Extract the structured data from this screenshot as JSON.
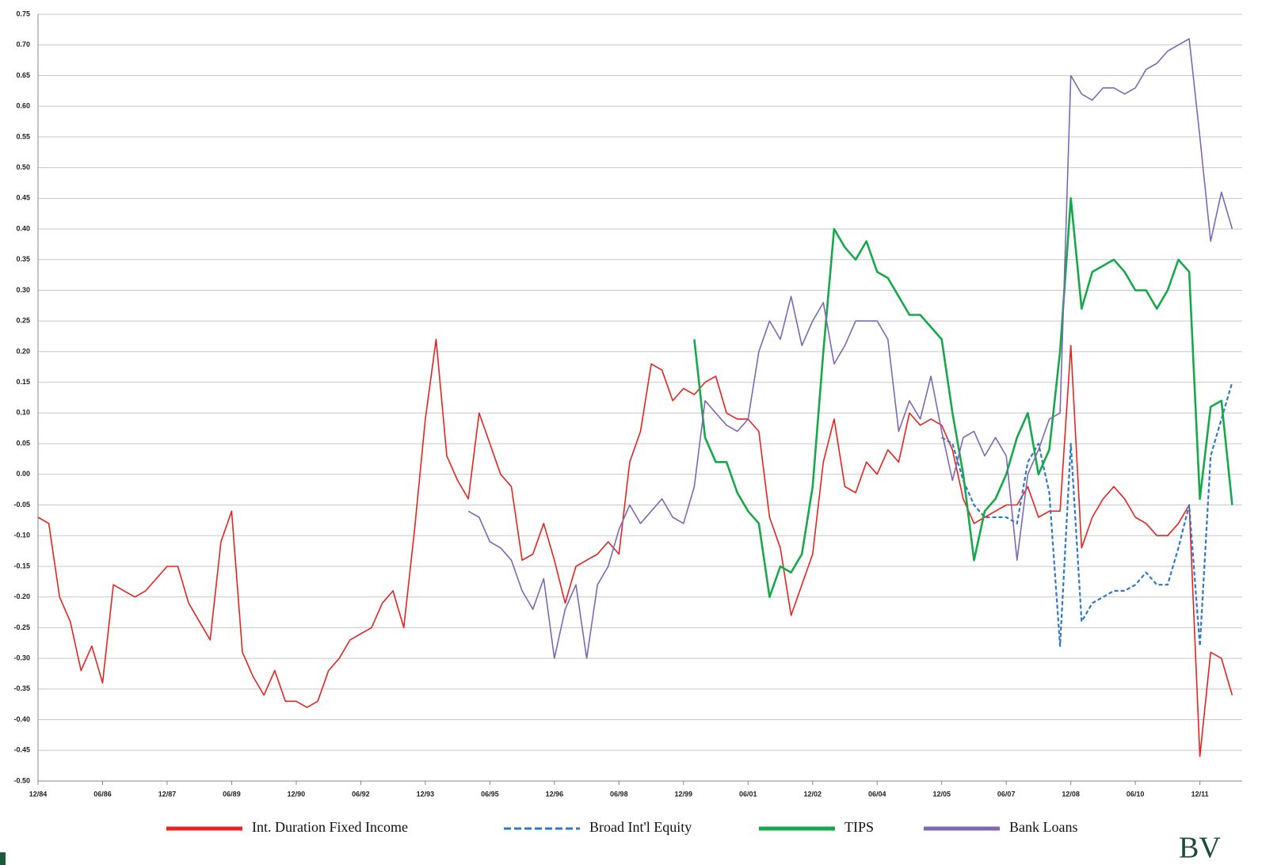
{
  "chart_data": {
    "type": "line",
    "categories": [
      "12/84",
      null,
      null,
      null,
      null,
      null,
      "06/86",
      null,
      null,
      null,
      null,
      null,
      "12/87",
      null,
      null,
      null,
      null,
      null,
      "06/89",
      null,
      null,
      null,
      null,
      null,
      "12/90",
      null,
      null,
      null,
      null,
      null,
      "06/92",
      null,
      null,
      null,
      null,
      null,
      "12/93",
      null,
      null,
      null,
      null,
      null,
      "06/95",
      null,
      null,
      null,
      null,
      null,
      "12/96",
      null,
      null,
      null,
      null,
      null,
      "06/98",
      null,
      null,
      null,
      null,
      null,
      "12/99",
      null,
      null,
      null,
      null,
      null,
      "06/01",
      null,
      null,
      null,
      null,
      null,
      "12/02",
      null,
      null,
      null,
      null,
      null,
      "06/04",
      null,
      null,
      null,
      null,
      null,
      "12/05",
      null,
      null,
      null,
      null,
      null,
      "06/07",
      null,
      null,
      null,
      null,
      null,
      "12/08",
      null,
      null,
      null,
      null,
      null,
      "06/10",
      null,
      null,
      null,
      null,
      null,
      "12/11",
      null,
      null,
      null
    ],
    "series": [
      {
        "name": "Int. Duration Fixed Income",
        "color": "#e3241f",
        "line_width": 1.6,
        "values": [
          -0.07,
          -0.08,
          -0.2,
          -0.24,
          -0.32,
          -0.28,
          -0.34,
          -0.18,
          -0.19,
          -0.2,
          -0.19,
          -0.17,
          -0.15,
          -0.15,
          -0.21,
          -0.24,
          -0.27,
          -0.11,
          -0.06,
          -0.29,
          -0.33,
          -0.36,
          -0.32,
          -0.37,
          -0.37,
          -0.38,
          -0.37,
          -0.32,
          -0.3,
          -0.27,
          -0.26,
          -0.25,
          -0.21,
          -0.19,
          -0.25,
          -0.09,
          0.09,
          0.22,
          0.03,
          -0.01,
          -0.04,
          0.1,
          0.05,
          0.0,
          -0.02,
          -0.14,
          -0.13,
          -0.08,
          -0.14,
          -0.21,
          -0.15,
          -0.14,
          -0.13,
          -0.11,
          -0.13,
          0.02,
          0.07,
          0.18,
          0.17,
          0.12,
          0.14,
          0.13,
          0.15,
          0.16,
          0.1,
          0.09,
          0.09,
          0.07,
          -0.07,
          -0.12,
          -0.23,
          -0.18,
          -0.13,
          0.02,
          0.09,
          -0.02,
          -0.03,
          0.02,
          0.0,
          0.04,
          0.02,
          0.1,
          0.08,
          0.09,
          0.08,
          0.04,
          -0.04,
          -0.08,
          -0.07,
          -0.06,
          -0.05,
          -0.05,
          -0.02,
          -0.07,
          -0.06,
          -0.06,
          0.21,
          -0.12,
          -0.07,
          -0.04,
          -0.02,
          -0.04,
          -0.07,
          -0.08,
          -0.1,
          -0.1,
          -0.08,
          -0.05,
          -0.46,
          -0.29,
          -0.3,
          -0.36
        ]
      },
      {
        "name": "Broad Int'l Equity",
        "color": "#2f78c8",
        "line_width": 2.2,
        "style": "dashed",
        "values": [
          null,
          null,
          null,
          null,
          null,
          null,
          null,
          null,
          null,
          null,
          null,
          null,
          null,
          null,
          null,
          null,
          null,
          null,
          null,
          null,
          null,
          null,
          null,
          null,
          null,
          null,
          null,
          null,
          null,
          null,
          null,
          null,
          null,
          null,
          null,
          null,
          null,
          null,
          null,
          null,
          null,
          null,
          null,
          null,
          null,
          null,
          null,
          null,
          null,
          null,
          null,
          null,
          null,
          null,
          null,
          null,
          null,
          null,
          null,
          null,
          null,
          null,
          null,
          null,
          null,
          null,
          null,
          null,
          null,
          null,
          null,
          null,
          null,
          null,
          null,
          null,
          null,
          null,
          null,
          null,
          null,
          null,
          null,
          null,
          0.06,
          0.05,
          -0.01,
          -0.05,
          -0.07,
          -0.07,
          -0.07,
          -0.08,
          0.02,
          0.05,
          -0.03,
          -0.28,
          0.05,
          -0.24,
          -0.21,
          -0.2,
          -0.19,
          -0.19,
          -0.18,
          -0.16,
          -0.18,
          -0.18,
          -0.12,
          -0.05,
          -0.28,
          0.03,
          0.09,
          0.15
        ]
      },
      {
        "name": "TIPS",
        "color": "#16a84a",
        "line_width": 2.6,
        "values": [
          null,
          null,
          null,
          null,
          null,
          null,
          null,
          null,
          null,
          null,
          null,
          null,
          null,
          null,
          null,
          null,
          null,
          null,
          null,
          null,
          null,
          null,
          null,
          null,
          null,
          null,
          null,
          null,
          null,
          null,
          null,
          null,
          null,
          null,
          null,
          null,
          null,
          null,
          null,
          null,
          null,
          null,
          null,
          null,
          null,
          null,
          null,
          null,
          null,
          null,
          null,
          null,
          null,
          null,
          null,
          null,
          null,
          null,
          null,
          null,
          null,
          0.22,
          0.06,
          0.02,
          0.02,
          -0.03,
          -0.06,
          -0.08,
          -0.2,
          -0.15,
          -0.16,
          -0.13,
          -0.02,
          0.2,
          0.4,
          0.37,
          0.35,
          0.38,
          0.33,
          0.32,
          0.29,
          0.26,
          0.26,
          0.24,
          0.22,
          0.1,
          0.0,
          -0.14,
          -0.06,
          -0.04,
          0.0,
          0.06,
          0.1,
          0.0,
          0.04,
          0.2,
          0.45,
          0.27,
          0.33,
          0.34,
          0.35,
          0.33,
          0.3,
          0.3,
          0.27,
          0.3,
          0.35,
          0.33,
          -0.04,
          0.11,
          0.12,
          -0.05
        ]
      },
      {
        "name": "Bank Loans",
        "color": "#7e68b4",
        "line_width": 1.6,
        "values": [
          null,
          null,
          null,
          null,
          null,
          null,
          null,
          null,
          null,
          null,
          null,
          null,
          null,
          null,
          null,
          null,
          null,
          null,
          null,
          null,
          null,
          null,
          null,
          null,
          null,
          null,
          null,
          null,
          null,
          null,
          null,
          null,
          null,
          null,
          null,
          null,
          null,
          null,
          null,
          null,
          -0.06,
          -0.07,
          -0.11,
          -0.12,
          -0.14,
          -0.19,
          -0.22,
          -0.17,
          -0.3,
          -0.22,
          -0.18,
          -0.3,
          -0.18,
          -0.15,
          -0.09,
          -0.05,
          -0.08,
          -0.06,
          -0.04,
          -0.07,
          -0.08,
          -0.02,
          0.12,
          0.1,
          0.08,
          0.07,
          0.09,
          0.2,
          0.25,
          0.22,
          0.29,
          0.21,
          0.25,
          0.28,
          0.18,
          0.21,
          0.25,
          0.25,
          0.25,
          0.22,
          0.07,
          0.12,
          0.09,
          0.16,
          0.07,
          -0.01,
          0.06,
          0.07,
          0.03,
          0.06,
          0.03,
          -0.14,
          0.0,
          0.04,
          0.09,
          0.1,
          0.65,
          0.62,
          0.61,
          0.63,
          0.63,
          0.62,
          0.63,
          0.66,
          0.67,
          0.69,
          0.7,
          0.71,
          0.55,
          0.38,
          0.46,
          0.4
        ]
      }
    ],
    "ylim": [
      -0.5,
      0.75
    ],
    "yticks": [
      {
        "value": -0.5,
        "label": "-0.50"
      },
      {
        "value": -0.45,
        "label": "-0.45"
      },
      {
        "value": -0.4,
        "label": "-0.40"
      },
      {
        "value": -0.35,
        "label": "-0.35"
      },
      {
        "value": -0.3,
        "label": "-0.30"
      },
      {
        "value": -0.25,
        "label": "-0.25"
      },
      {
        "value": -0.2,
        "label": "-0.20"
      },
      {
        "value": -0.15,
        "label": "-0.15"
      },
      {
        "value": -0.1,
        "label": "-0.10"
      },
      {
        "value": -0.05,
        "label": "-0.05"
      },
      {
        "value": 0,
        "label": "0.00"
      },
      {
        "value": 0.05,
        "label": "0.05"
      },
      {
        "value": 0.1,
        "label": "0.10"
      },
      {
        "value": 0.15,
        "label": "0.15"
      },
      {
        "value": 0.2,
        "label": "0.20"
      },
      {
        "value": 0.25,
        "label": "0.25"
      },
      {
        "value": 0.3,
        "label": "0.30"
      },
      {
        "value": 0.35,
        "label": "0.35"
      },
      {
        "value": 0.4,
        "label": "0.40"
      },
      {
        "value": 0.45,
        "label": "0.45"
      },
      {
        "value": 0.5,
        "label": "0.50"
      },
      {
        "value": 0.55,
        "label": "0.55"
      },
      {
        "value": 0.6,
        "label": "0.60"
      },
      {
        "value": 0.65,
        "label": "0.65"
      },
      {
        "value": 0.7,
        "label": "0.70"
      },
      {
        "value": 0.75,
        "label": "0.75"
      }
    ],
    "grid": true,
    "legend": "bottom"
  },
  "footer": {
    "logo": "BV"
  }
}
